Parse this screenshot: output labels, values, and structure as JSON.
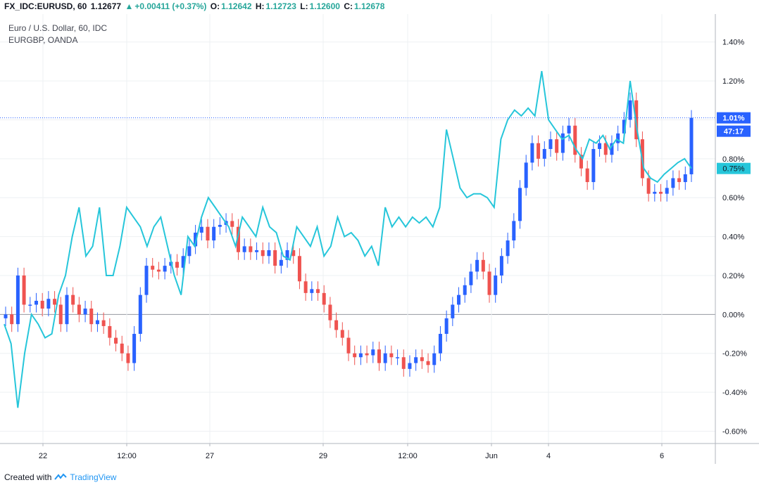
{
  "header": {
    "symbol": "FX_IDC:EURUSD, 60",
    "last": "1.12677",
    "change": "+0.00411 (+0.37%)",
    "open_label": "O:",
    "open": "1.12642",
    "high_label": "H:",
    "high": "1.12723",
    "low_label": "L:",
    "low": "1.12600",
    "close_label": "C:",
    "close": "1.12678"
  },
  "legend": {
    "main": "Euro / U.S. Dollar, 60, IDC",
    "compare": "EURGBP, OANDA"
  },
  "footer": {
    "created_with": "Created with",
    "brand": "TradingView"
  },
  "colors": {
    "up": "#26a69a",
    "bull_candle": "#2962ff",
    "bear_candle": "#ef5350",
    "compare_line": "#26c6da",
    "last_price_badge": "#2962ff",
    "compare_badge": "#26c6da"
  },
  "chart_data": {
    "type": "line",
    "y_unit": "%",
    "ylim": [
      -0.65,
      1.55
    ],
    "y_ticks": [
      "1.40%",
      "1.20%",
      "1.00%",
      "0.80%",
      "0.60%",
      "0.40%",
      "0.20%",
      "0.00%",
      "-0.20%",
      "-0.40%",
      "-0.60%"
    ],
    "x_ticks": [
      "22",
      "12:00",
      "27",
      "29",
      "12:00",
      "Jun",
      "4",
      "6"
    ],
    "grid": true,
    "price_badges": {
      "eurusd": "1.01%",
      "countdown": "47:17",
      "eurgbp": "0.75%"
    },
    "series": [
      {
        "name": "Euro / U.S. Dollar, 60, IDC",
        "values": [
          0.0,
          -0.05,
          0.2,
          0.05,
          0.05,
          0.07,
          0.03,
          0.08,
          0.05,
          -0.05,
          0.1,
          0.05,
          0.0,
          0.03,
          -0.05,
          -0.03,
          -0.06,
          -0.12,
          -0.15,
          -0.2,
          -0.25,
          -0.1,
          0.1,
          0.25,
          0.23,
          0.22,
          0.25,
          0.27,
          0.24,
          0.3,
          0.35,
          0.42,
          0.45,
          0.38,
          0.45,
          0.46,
          0.48,
          0.45,
          0.32,
          0.35,
          0.32,
          0.33,
          0.3,
          0.33,
          0.25,
          0.28,
          0.33,
          0.3,
          0.17,
          0.11,
          0.13,
          0.11,
          0.05,
          -0.03,
          -0.08,
          -0.12,
          -0.2,
          -0.22,
          -0.2,
          -0.21,
          -0.18,
          -0.25,
          -0.2,
          -0.22,
          -0.22,
          -0.28,
          -0.25,
          -0.22,
          -0.24,
          -0.26,
          -0.2,
          -0.1,
          -0.02,
          0.05,
          0.1,
          0.15,
          0.22,
          0.28,
          0.22,
          0.1,
          0.2,
          0.3,
          0.38,
          0.48,
          0.65,
          0.78,
          0.88,
          0.8,
          0.85,
          0.9,
          0.83,
          0.93,
          0.97,
          0.82,
          0.75,
          0.68,
          0.85,
          0.88,
          0.82,
          0.88,
          0.93,
          1.0,
          1.1,
          0.9,
          0.7,
          0.62,
          0.63,
          0.62,
          0.65,
          0.7,
          0.68,
          0.72,
          1.01
        ]
      },
      {
        "name": "EURGBP, OANDA",
        "values": [
          -0.05,
          -0.15,
          -0.48,
          -0.2,
          0.0,
          -0.05,
          -0.12,
          -0.1,
          0.1,
          0.2,
          0.4,
          0.55,
          0.3,
          0.35,
          0.55,
          0.2,
          0.2,
          0.35,
          0.55,
          0.5,
          0.45,
          0.35,
          0.45,
          0.5,
          0.35,
          0.2,
          0.1,
          0.4,
          0.35,
          0.5,
          0.6,
          0.55,
          0.5,
          0.45,
          0.35,
          0.5,
          0.45,
          0.4,
          0.55,
          0.45,
          0.42,
          0.3,
          0.28,
          0.45,
          0.4,
          0.35,
          0.45,
          0.3,
          0.35,
          0.5,
          0.4,
          0.42,
          0.38,
          0.3,
          0.35,
          0.25,
          0.55,
          0.45,
          0.5,
          0.45,
          0.5,
          0.47,
          0.5,
          0.45,
          0.55,
          0.95,
          0.8,
          0.65,
          0.6,
          0.62,
          0.62,
          0.6,
          0.55,
          0.9,
          1.0,
          1.05,
          1.02,
          1.06,
          1.02,
          1.25,
          1.0,
          0.95,
          0.9,
          0.92,
          0.85,
          0.8,
          0.9,
          0.88,
          0.92,
          0.85,
          0.9,
          0.88,
          1.2,
          0.95,
          0.75,
          0.7,
          0.68,
          0.72,
          0.75,
          0.78,
          0.8,
          0.75
        ]
      }
    ]
  }
}
